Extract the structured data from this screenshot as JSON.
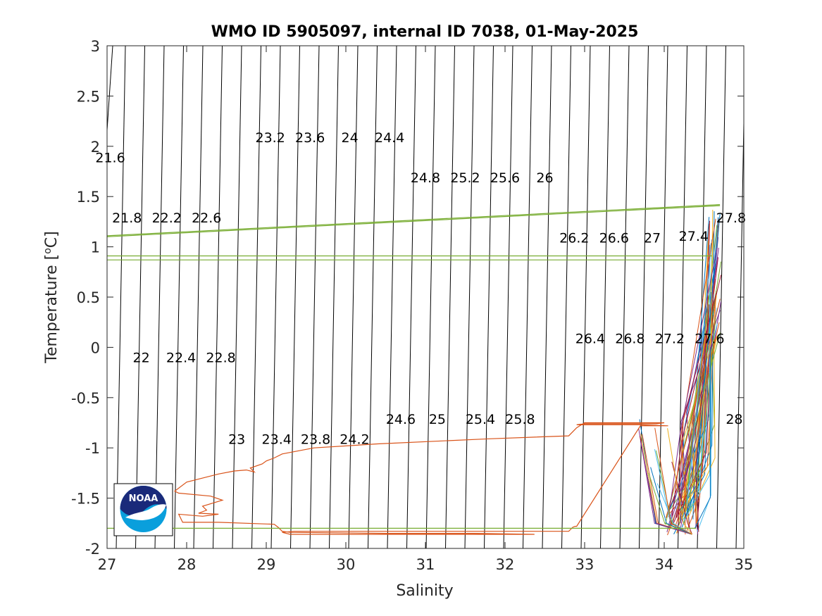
{
  "chart_data": {
    "type": "line",
    "title": "WMO ID 5905097, internal ID 7038, 01-May-2025",
    "xlabel": "Salinity",
    "ylabel": "Temperature [°C]",
    "ylabel_main": "Temperature [",
    "ylabel_sup": "o",
    "ylabel_end": "C]",
    "xlim": [
      27,
      35
    ],
    "ylim": [
      -2,
      3
    ],
    "xticks": [
      "27",
      "28",
      "29",
      "30",
      "31",
      "32",
      "33",
      "34",
      "35"
    ],
    "yticks": [
      "-2",
      "-1.5",
      "-1",
      "-0.5",
      "0",
      "0.5",
      "1",
      "1.5",
      "2",
      "2.5",
      "3"
    ],
    "grid": false,
    "logo": "NOAA",
    "isopycnal_labels": [
      {
        "text": "21.6",
        "s": 27.04,
        "t": 1.89
      },
      {
        "text": "21.8",
        "s": 27.25,
        "t": 1.29
      },
      {
        "text": "22.2",
        "s": 27.75,
        "t": 1.29
      },
      {
        "text": "22.6",
        "s": 28.25,
        "t": 1.29
      },
      {
        "text": "22",
        "s": 27.43,
        "t": -0.1
      },
      {
        "text": "22.4",
        "s": 27.93,
        "t": -0.1
      },
      {
        "text": "22.8",
        "s": 28.43,
        "t": -0.1
      },
      {
        "text": "23",
        "s": 28.63,
        "t": -0.91
      },
      {
        "text": "23.4",
        "s": 29.13,
        "t": -0.91
      },
      {
        "text": "23.8",
        "s": 29.62,
        "t": -0.91
      },
      {
        "text": "24.2",
        "s": 30.11,
        "t": -0.91
      },
      {
        "text": "23.2",
        "s": 29.05,
        "t": 2.09
      },
      {
        "text": "23.6",
        "s": 29.55,
        "t": 2.09
      },
      {
        "text": "24",
        "s": 30.05,
        "t": 2.09
      },
      {
        "text": "24.4",
        "s": 30.55,
        "t": 2.09
      },
      {
        "text": "24.8",
        "s": 31.0,
        "t": 1.69
      },
      {
        "text": "25.2",
        "s": 31.5,
        "t": 1.69
      },
      {
        "text": "25.6",
        "s": 32.0,
        "t": 1.69
      },
      {
        "text": "26",
        "s": 32.5,
        "t": 1.69
      },
      {
        "text": "24.6",
        "s": 30.69,
        "t": -0.71
      },
      {
        "text": "25",
        "s": 31.15,
        "t": -0.71
      },
      {
        "text": "25.4",
        "s": 31.69,
        "t": -0.71
      },
      {
        "text": "25.8",
        "s": 32.19,
        "t": -0.71
      },
      {
        "text": "26.2",
        "s": 32.87,
        "t": 1.09
      },
      {
        "text": "26.6",
        "s": 33.37,
        "t": 1.09
      },
      {
        "text": "27",
        "s": 33.85,
        "t": 1.09
      },
      {
        "text": "27.4",
        "s": 34.37,
        "t": 1.11
      },
      {
        "text": "27.8",
        "s": 34.84,
        "t": 1.29
      },
      {
        "text": "26.4",
        "s": 33.07,
        "t": 0.09
      },
      {
        "text": "26.8",
        "s": 33.57,
        "t": 0.09
      },
      {
        "text": "27.2",
        "s": 34.07,
        "t": 0.09
      },
      {
        "text": "27.6",
        "s": 34.57,
        "t": 0.09
      },
      {
        "text": "28",
        "s": 34.88,
        "t": -0.71
      }
    ],
    "series": [
      {
        "color": "#d95319",
        "x": [
          32.37,
          30.8,
          29.3,
          29.2,
          29.35,
          30.2,
          31.4,
          32.6,
          32.8,
          32.85,
          32.88,
          32.9,
          33.7,
          34.05,
          33.7,
          32.9,
          33.0,
          33.9,
          34.0,
          33.0,
          32.9,
          32.8,
          31.8,
          30.4,
          29.6,
          29.2,
          29.1,
          29.0,
          28.95,
          28.8,
          28.85,
          28.75,
          28.6,
          28.4,
          28.3,
          28.0,
          27.85,
          27.9,
          28.3,
          28.45,
          28.2,
          28.25,
          28.15,
          28.4,
          28.2,
          27.9,
          27.95,
          28.4,
          29.1,
          29.15,
          29.2,
          29.3,
          30.5,
          31.6,
          32.37
        ],
        "y": [
          -1.86,
          -1.86,
          -1.86,
          -1.84,
          -1.83,
          -1.83,
          -1.83,
          -1.83,
          -1.83,
          -1.79,
          -1.78,
          -1.78,
          -0.78,
          -0.78,
          -0.77,
          -0.77,
          -0.76,
          -0.76,
          -0.75,
          -0.75,
          -0.8,
          -0.88,
          -0.91,
          -0.96,
          -1.0,
          -1.06,
          -1.1,
          -1.13,
          -1.16,
          -1.2,
          -1.24,
          -1.22,
          -1.23,
          -1.26,
          -1.28,
          -1.34,
          -1.43,
          -1.45,
          -1.48,
          -1.52,
          -1.58,
          -1.62,
          -1.65,
          -1.66,
          -1.68,
          -1.66,
          -1.74,
          -1.74,
          -1.76,
          -1.79,
          -1.83,
          -1.84,
          -1.85,
          -1.85,
          -1.86
        ]
      },
      {
        "color": "#77ac30",
        "x": [
          27.0,
          34.7
        ],
        "y": [
          1.1,
          1.41
        ]
      },
      {
        "color": "#77ac30",
        "x": [
          27.0,
          34.7
        ],
        "y": [
          1.11,
          1.42
        ]
      },
      {
        "color": "#77ac30",
        "x": [
          27.0,
          34.6
        ],
        "y": [
          0.91,
          0.91
        ]
      },
      {
        "color": "#77ac30",
        "x": [
          27.0,
          34.5
        ],
        "y": [
          0.87,
          0.87
        ]
      },
      {
        "color": "#77ac30",
        "x": [
          27.0,
          34.4
        ],
        "y": [
          -1.8,
          -1.8
        ]
      }
    ]
  }
}
